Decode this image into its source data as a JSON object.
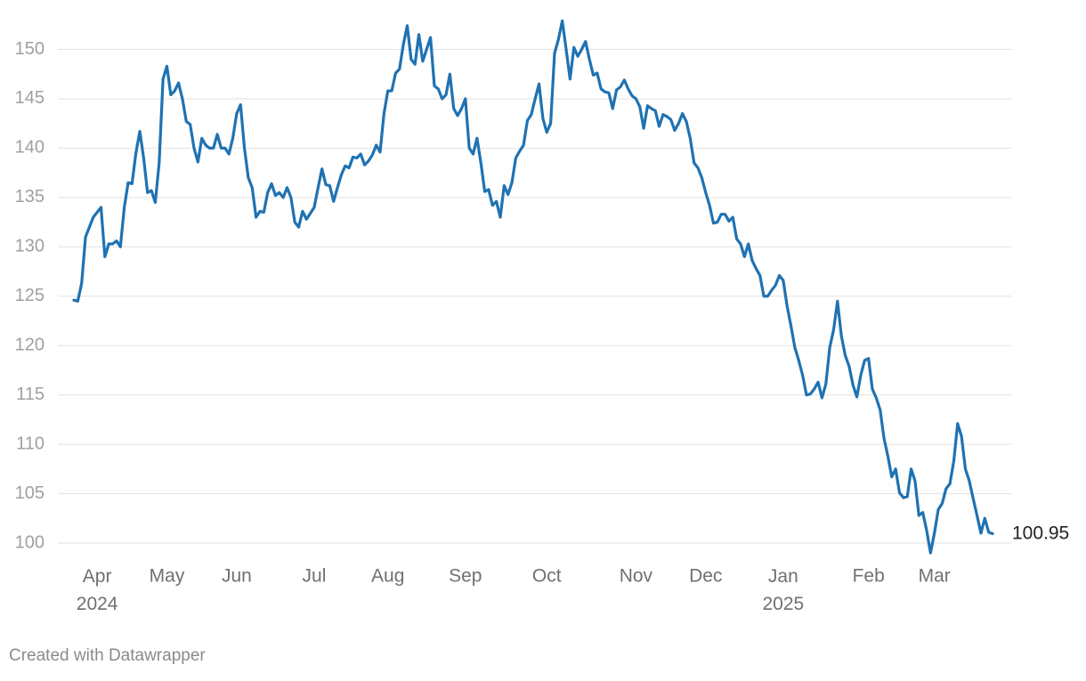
{
  "chart_data": {
    "type": "line",
    "color": "#1f72b2",
    "grid": true,
    "credit": "Created with Datawrapper",
    "ylim": [
      98.2,
      153.2
    ],
    "yticks": [
      100,
      105,
      110,
      115,
      120,
      125,
      130,
      135,
      140,
      145,
      150
    ],
    "categories": [
      null,
      null,
      null,
      null,
      null,
      null,
      "Apr 2024",
      null,
      null,
      null,
      null,
      null,
      null,
      null,
      null,
      null,
      null,
      null,
      null,
      null,
      null,
      null,
      null,
      null,
      "May",
      null,
      null,
      null,
      null,
      null,
      null,
      null,
      null,
      null,
      null,
      null,
      null,
      null,
      null,
      null,
      null,
      null,
      "Jun",
      null,
      null,
      null,
      null,
      null,
      null,
      null,
      null,
      null,
      null,
      null,
      null,
      null,
      null,
      null,
      null,
      null,
      null,
      null,
      "Jul",
      null,
      null,
      null,
      null,
      null,
      null,
      null,
      null,
      null,
      null,
      null,
      null,
      null,
      null,
      null,
      null,
      null,
      null,
      "Aug",
      null,
      null,
      null,
      null,
      null,
      null,
      null,
      null,
      null,
      null,
      null,
      null,
      null,
      null,
      null,
      null,
      null,
      null,
      null,
      "Sep",
      null,
      null,
      null,
      null,
      null,
      null,
      null,
      null,
      null,
      null,
      null,
      null,
      null,
      null,
      null,
      null,
      null,
      null,
      null,
      null,
      "Oct",
      null,
      null,
      null,
      null,
      null,
      null,
      null,
      null,
      null,
      null,
      null,
      null,
      null,
      null,
      null,
      null,
      null,
      null,
      null,
      null,
      null,
      null,
      "Nov",
      null,
      null,
      null,
      null,
      null,
      null,
      null,
      null,
      null,
      null,
      null,
      null,
      null,
      null,
      null,
      null,
      null,
      "Dec",
      null,
      null,
      null,
      null,
      null,
      null,
      null,
      null,
      null,
      null,
      null,
      null,
      null,
      null,
      null,
      null,
      null,
      null,
      null,
      "Jan 2025",
      null,
      null,
      null,
      null,
      null,
      null,
      null,
      null,
      null,
      null,
      null,
      null,
      null,
      null,
      null,
      null,
      null,
      null,
      null,
      null,
      null,
      "Feb",
      null,
      null,
      null,
      null,
      null,
      null,
      null,
      null,
      null,
      null,
      null,
      null,
      null,
      null,
      null,
      null,
      "Mar",
      null,
      null,
      null,
      null,
      null,
      null,
      null,
      null,
      null,
      null,
      null,
      null,
      null,
      null,
      null
    ],
    "values": [
      124.6,
      124.5,
      126.3,
      131,
      132,
      133,
      133.5,
      134,
      129,
      130.3,
      130.3,
      130.6,
      130,
      134,
      136.5,
      136.4,
      139.5,
      141.7,
      139,
      135.5,
      135.7,
      134.5,
      138.5,
      147,
      148.3,
      145.4,
      145.8,
      146.6,
      145,
      142.7,
      142.4,
      140,
      138.6,
      141,
      140.3,
      140,
      140,
      141.4,
      140,
      140,
      139.4,
      141,
      143.5,
      144.4,
      140,
      137,
      136,
      133,
      133.6,
      133.5,
      135.5,
      136.4,
      135.2,
      135.5,
      135,
      136,
      135,
      132.5,
      132,
      133.6,
      132.8,
      133.4,
      134,
      136,
      137.9,
      136.3,
      136.2,
      134.6,
      136,
      137.3,
      138.2,
      138,
      139.1,
      139,
      139.4,
      138.3,
      138.7,
      139.3,
      140.3,
      139.6,
      143.5,
      145.8,
      145.8,
      147.6,
      148,
      150.5,
      152.4,
      149,
      148.5,
      151.5,
      148.8,
      150,
      151.2,
      146.3,
      146,
      145,
      145.4,
      147.5,
      144,
      143.3,
      144,
      145,
      140,
      139.4,
      141,
      138.5,
      135.6,
      135.8,
      134.2,
      134.6,
      133,
      136.2,
      135.3,
      136.5,
      139,
      139.7,
      140.3,
      142.8,
      143.4,
      145,
      146.5,
      143,
      141.6,
      142.5,
      149.6,
      151,
      152.9,
      150,
      147,
      150.2,
      149.3,
      150,
      150.8,
      149,
      147.4,
      147.6,
      146,
      145.7,
      145.6,
      144,
      145.9,
      146.2,
      146.9,
      146,
      145.3,
      145,
      144.2,
      142,
      144.3,
      144,
      143.8,
      142.2,
      143.4,
      143.2,
      142.9,
      141.8,
      142.5,
      143.5,
      142.7,
      141,
      138.5,
      138,
      137,
      135.5,
      134.2,
      132.4,
      132.5,
      133.3,
      133.3,
      132.6,
      133,
      130.8,
      130.3,
      129,
      130.3,
      128.6,
      127.8,
      127.1,
      125,
      125,
      125.6,
      126.1,
      127.1,
      126.6,
      124,
      122,
      119.8,
      118.5,
      117,
      115,
      115.1,
      115.6,
      116.3,
      114.7,
      116.1,
      119.8,
      121.6,
      124.5,
      121,
      119,
      117.9,
      116,
      114.8,
      117,
      118.5,
      118.7,
      115.6,
      114.7,
      113.5,
      110.6,
      108.8,
      106.7,
      107.5,
      105.1,
      104.6,
      104.7,
      107.5,
      106.3,
      102.8,
      103.1,
      101.3,
      99,
      101,
      103.4,
      104,
      105.5,
      106,
      108.3,
      112.1,
      110.8,
      107.5,
      106.3,
      104.5,
      102.8,
      101,
      102.5,
      101.1,
      100.95
    ]
  }
}
